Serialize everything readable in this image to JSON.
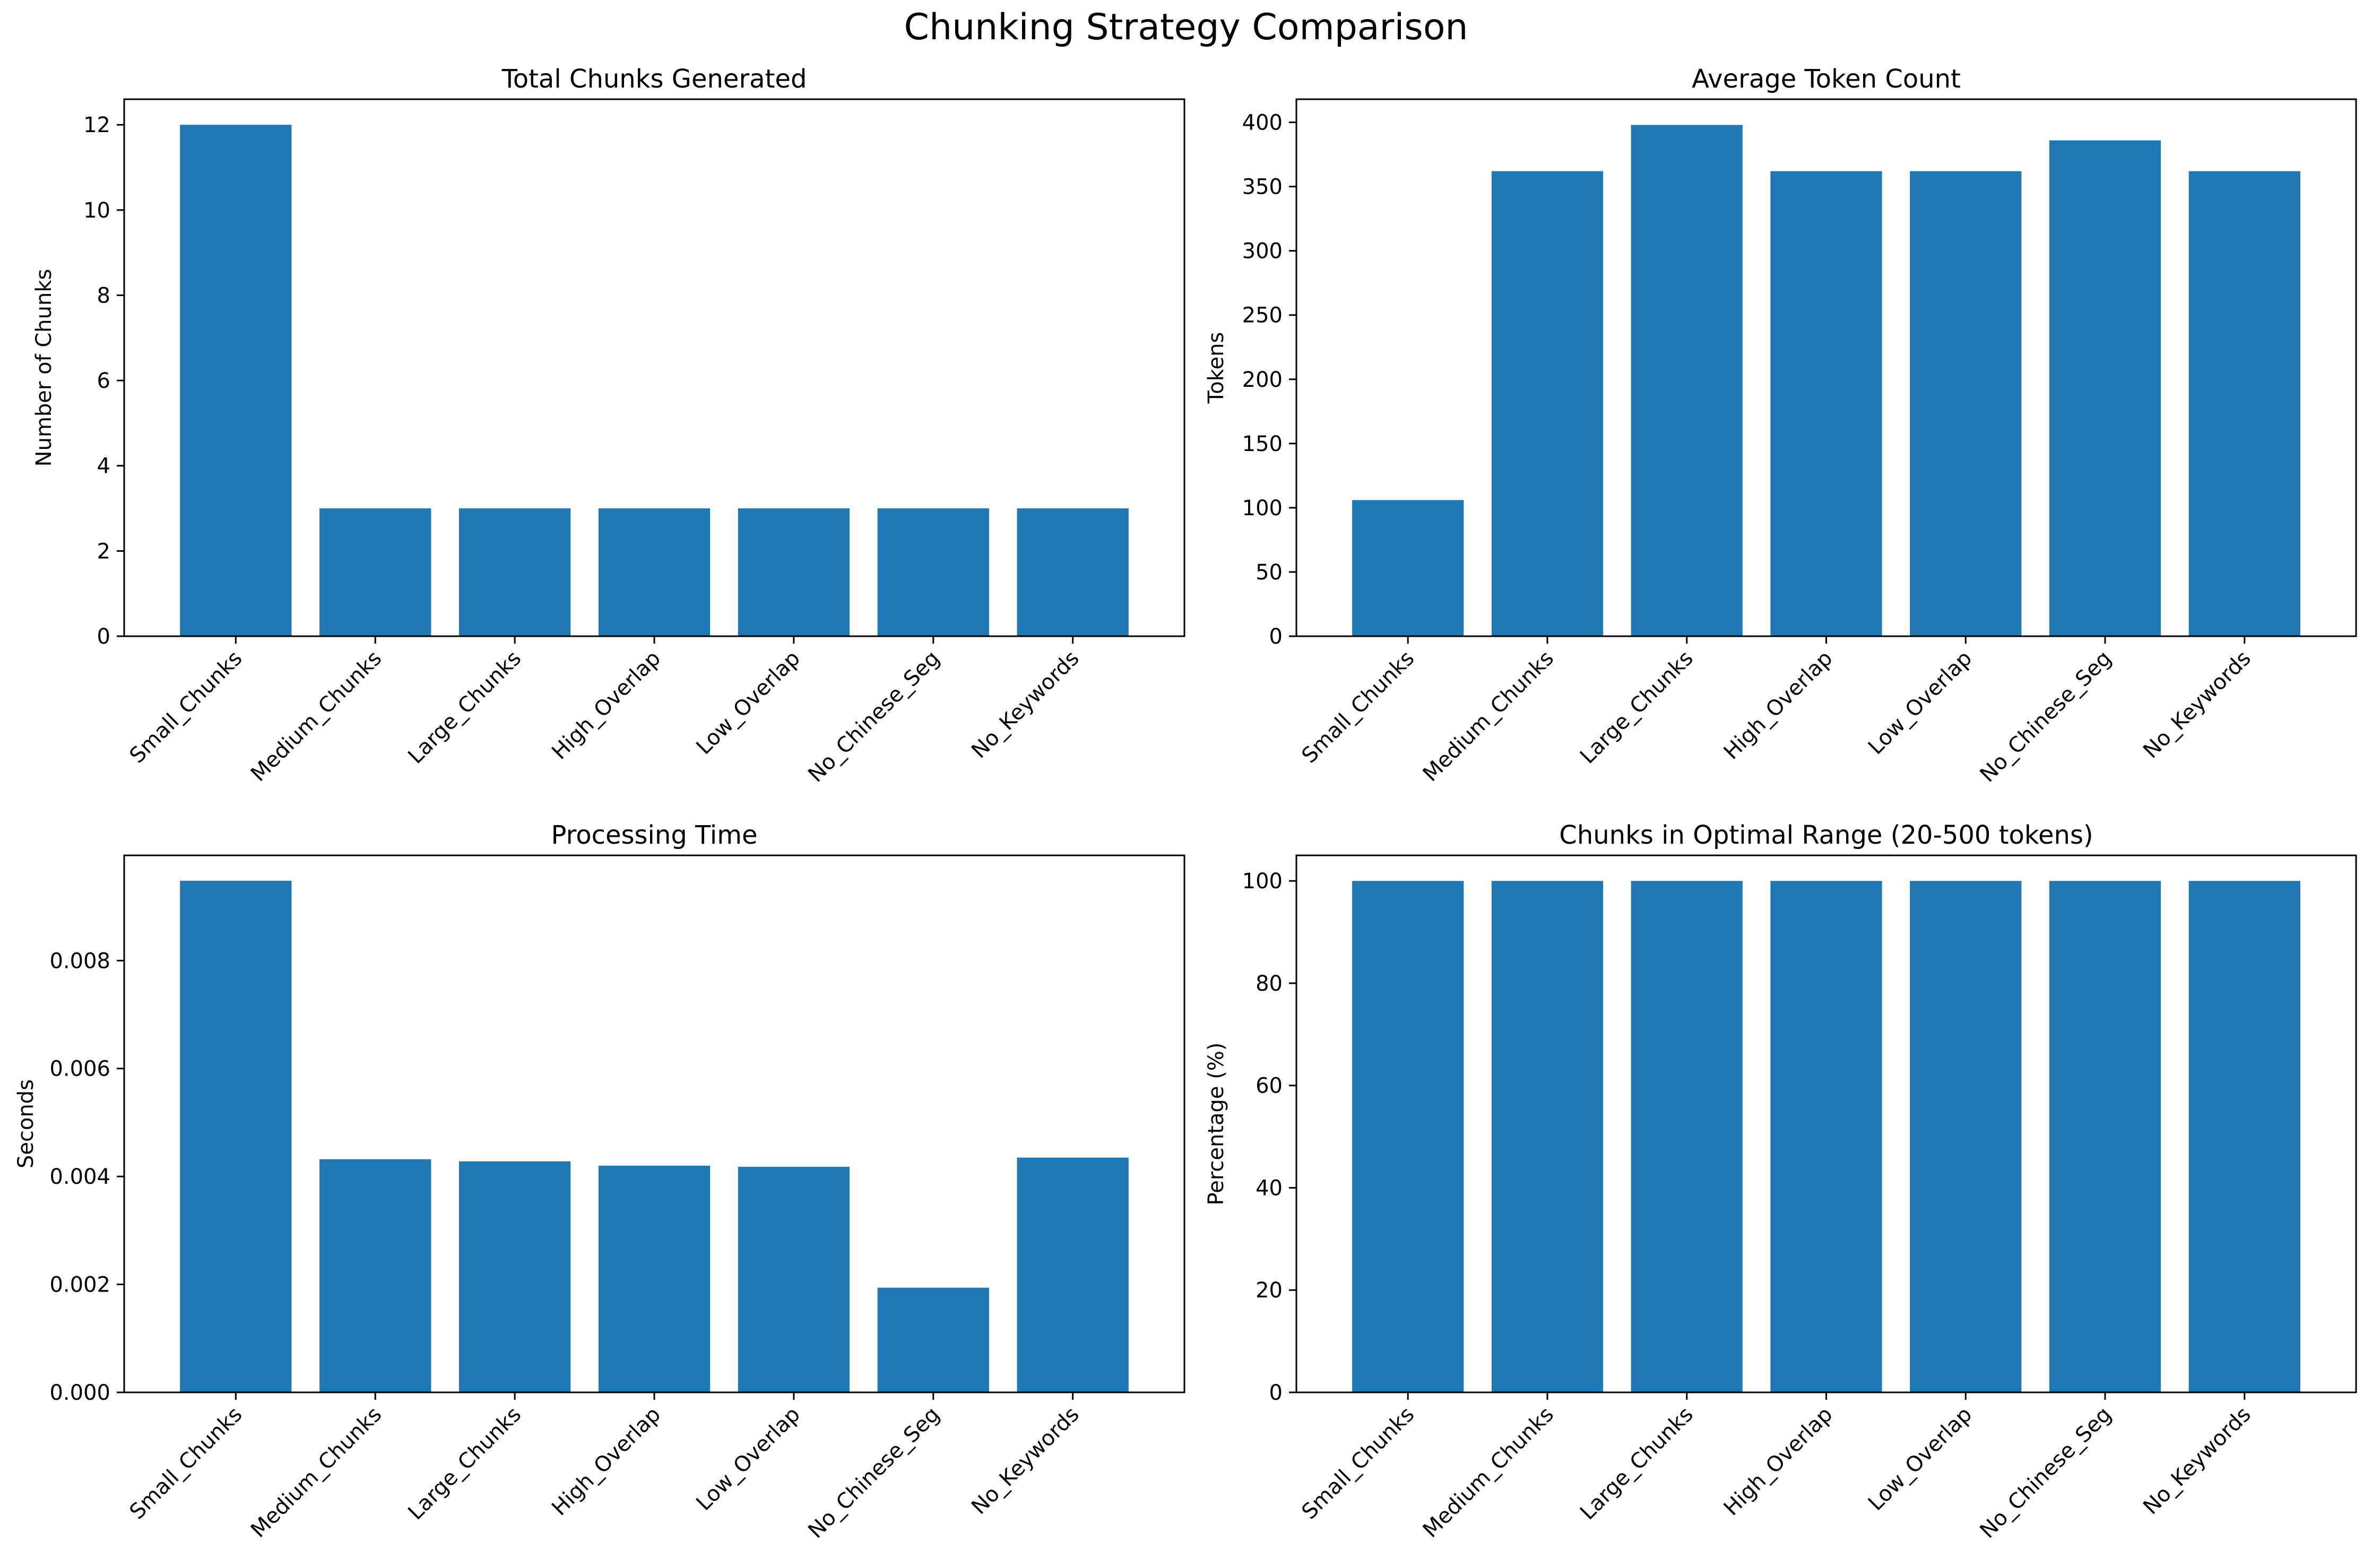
{
  "figure": {
    "title": "Chunking Strategy Comparison",
    "bar_color": "#1f77b4"
  },
  "chart_data": [
    {
      "type": "bar",
      "title": "Total Chunks Generated",
      "xlabel": "",
      "ylabel": "Number of Chunks",
      "categories": [
        "Small_Chunks",
        "Medium_Chunks",
        "Large_Chunks",
        "High_Overlap",
        "Low_Overlap",
        "No_Chinese_Seg",
        "No_Keywords"
      ],
      "values": [
        12,
        3,
        3,
        3,
        3,
        3,
        3
      ],
      "ylim": [
        0,
        12.6
      ],
      "yticks": [
        "0",
        "2",
        "4",
        "6",
        "8",
        "10",
        "12"
      ],
      "ytick_values": [
        0,
        2,
        4,
        6,
        8,
        10,
        12
      ],
      "grid": false
    },
    {
      "type": "bar",
      "title": "Average Token Count",
      "xlabel": "",
      "ylabel": "Tokens",
      "categories": [
        "Small_Chunks",
        "Medium_Chunks",
        "Large_Chunks",
        "High_Overlap",
        "Low_Overlap",
        "No_Chinese_Seg",
        "No_Keywords"
      ],
      "values": [
        106,
        362,
        398,
        362,
        362,
        386,
        362
      ],
      "ylim": [
        0,
        418
      ],
      "yticks": [
        "0",
        "50",
        "100",
        "150",
        "200",
        "250",
        "300",
        "350",
        "400"
      ],
      "ytick_values": [
        0,
        50,
        100,
        150,
        200,
        250,
        300,
        350,
        400
      ],
      "grid": false
    },
    {
      "type": "bar",
      "title": "Processing Time",
      "xlabel": "",
      "ylabel": "Seconds",
      "categories": [
        "Small_Chunks",
        "Medium_Chunks",
        "Large_Chunks",
        "High_Overlap",
        "Low_Overlap",
        "No_Chinese_Seg",
        "No_Keywords"
      ],
      "values": [
        0.00948,
        0.00432,
        0.00428,
        0.0042,
        0.00418,
        0.00194,
        0.00435
      ],
      "ylim": [
        0,
        0.00995
      ],
      "yticks": [
        "0.000",
        "0.002",
        "0.004",
        "0.006",
        "0.008"
      ],
      "ytick_values": [
        0,
        0.002,
        0.004,
        0.006,
        0.008
      ],
      "grid": false
    },
    {
      "type": "bar",
      "title": "Chunks in Optimal Range (20-500 tokens)",
      "xlabel": "",
      "ylabel": "Percentage (%)",
      "categories": [
        "Small_Chunks",
        "Medium_Chunks",
        "Large_Chunks",
        "High_Overlap",
        "Low_Overlap",
        "No_Chinese_Seg",
        "No_Keywords"
      ],
      "values": [
        100,
        100,
        100,
        100,
        100,
        100,
        100
      ],
      "ylim": [
        0,
        105
      ],
      "yticks": [
        "0",
        "20",
        "40",
        "60",
        "80",
        "100"
      ],
      "ytick_values": [
        0,
        20,
        40,
        60,
        80,
        100
      ],
      "grid": false
    }
  ]
}
